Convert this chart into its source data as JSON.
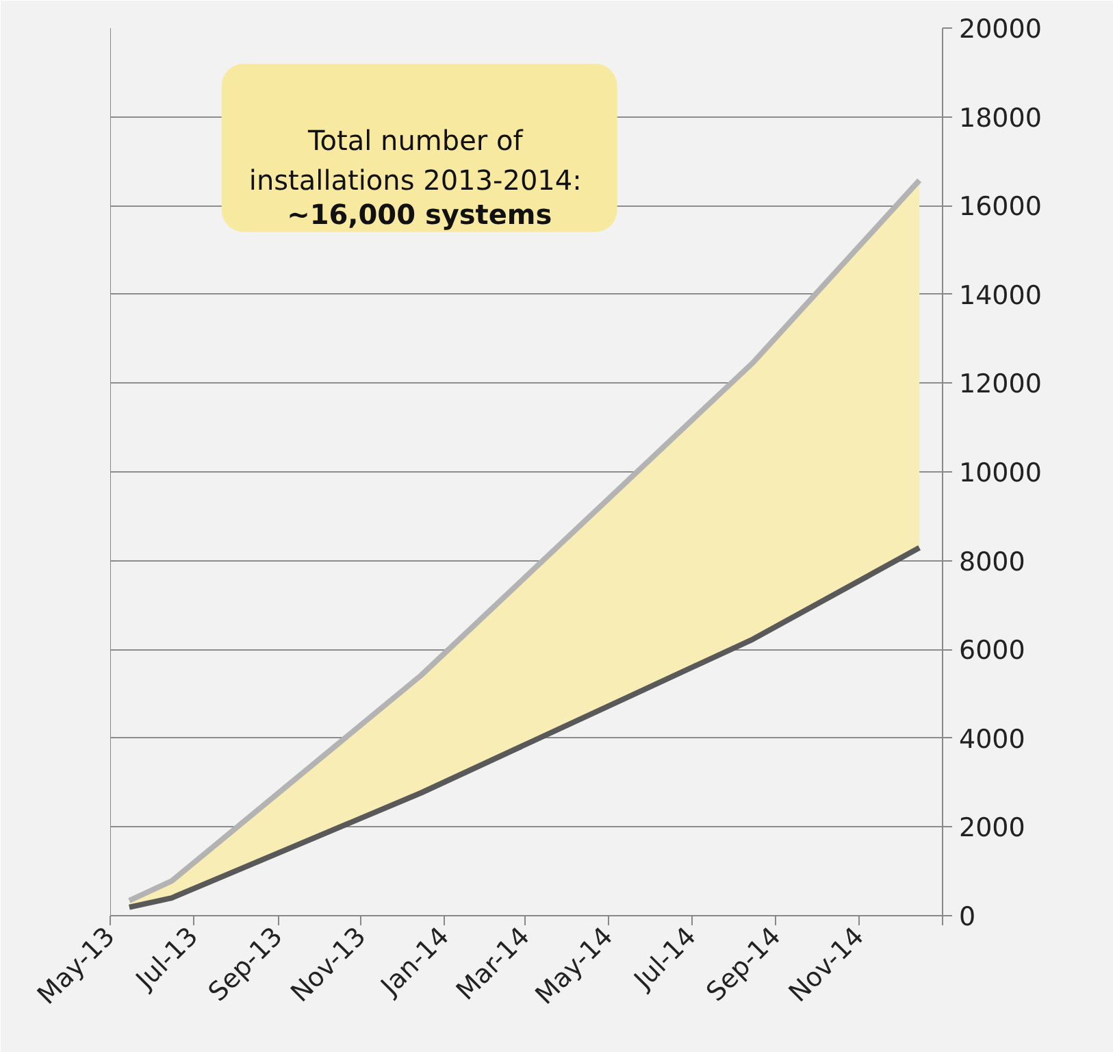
{
  "chart_data": {
    "type": "line",
    "x": [
      "2013-05-15",
      "2013-06-15",
      "2013-12-15",
      "2014-08-15",
      "2014-12-15"
    ],
    "series": [
      {
        "type": "area",
        "color": "#b3b3b3",
        "values": [
          340,
          780,
          5420,
          12460,
          16570
        ]
      },
      {
        "color": "#595959",
        "values": [
          190,
          400,
          2770,
          6230,
          8290
        ]
      }
    ],
    "xlim": [
      "2013-05-01",
      "2015-01-01"
    ],
    "xticks": [
      {
        "value": "2013-05-01",
        "label": "May-13"
      },
      {
        "value": "2013-07-01",
        "label": "Jul-13"
      },
      {
        "value": "2013-09-01",
        "label": "Sep-13"
      },
      {
        "value": "2013-11-01",
        "label": "Nov-13"
      },
      {
        "value": "2014-01-01",
        "label": "Jan-14"
      },
      {
        "value": "2014-03-01",
        "label": "Mar-14"
      },
      {
        "value": "2014-05-01",
        "label": "May-14"
      },
      {
        "value": "2014-07-01",
        "label": "Jul-14"
      },
      {
        "value": "2014-09-01",
        "label": "Sep-14"
      },
      {
        "value": "2014-11-01",
        "label": "Nov-14"
      },
      {
        "value": "2015-01-01",
        "label": null
      }
    ],
    "ylim": [
      0,
      20000
    ],
    "yticks": [
      0,
      2000,
      4000,
      6000,
      8000,
      10000,
      12000,
      14000,
      16000,
      18000,
      20000
    ],
    "grid": "y",
    "marker": "none",
    "line_style": "solid",
    "annotations": [
      "Total number of\ninstallations 2013-2014:",
      "~16,000 systems"
    ]
  }
}
